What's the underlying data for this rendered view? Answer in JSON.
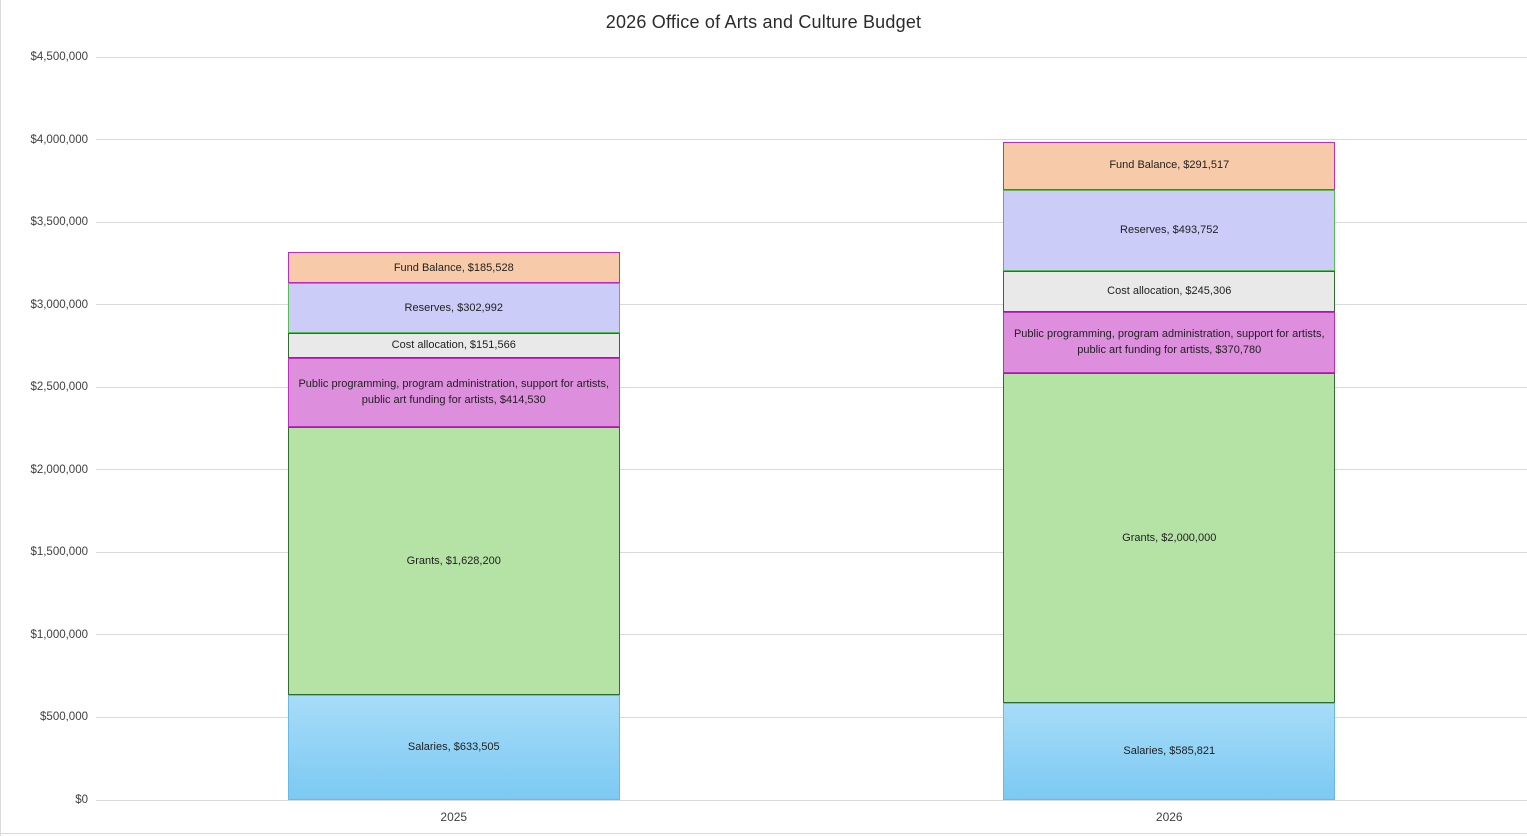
{
  "title": "2026 Office of Arts and Culture Budget",
  "chart_data": {
    "type": "bar",
    "stacked": true,
    "title": "2026 Office of Arts and Culture Budget",
    "categories": [
      "2025",
      "2026"
    ],
    "series": [
      {
        "name": "Salaries",
        "values": [
          633505,
          585821
        ],
        "fill_top": "#a7dcf8",
        "fill_bottom": "#7cc9f3",
        "border": "#69b8e7"
      },
      {
        "name": "Grants",
        "values": [
          1628200,
          2000000
        ],
        "fill": "#b5e3a5",
        "border": "#2f6c2f"
      },
      {
        "name": "Public programming, program administration, support for artists, public art funding for artists",
        "values": [
          414530,
          370780
        ],
        "fill": "#dd8fdd",
        "border": "#be2cbe"
      },
      {
        "name": "Cost allocation",
        "values": [
          151566,
          245306
        ],
        "fill": "#e9e9e9",
        "border": "#2f6c2f"
      },
      {
        "name": "Reserves",
        "values": [
          302992,
          493752
        ],
        "fill": "#cbccf8",
        "border": "#55bc55"
      },
      {
        "name": "Fund Balance",
        "values": [
          185528,
          291517
        ],
        "fill": "#f7cba9",
        "border": "#be2cbe"
      }
    ],
    "y_tick_labels": [
      "$0",
      "$500,000",
      "$1,000,000",
      "$1,500,000",
      "$2,000,000",
      "$2,500,000",
      "$3,000,000",
      "$3,500,000",
      "$4,000,000",
      "$4,500,000"
    ],
    "ylim": [
      0,
      4500000
    ],
    "grid": true,
    "gridline_color": "#d9d9d9",
    "axis_text_color": "#404040",
    "title_color": "#2b2b2b",
    "label_text_color": "#1f1f1f",
    "value_prefix": "$",
    "legend": "none"
  }
}
